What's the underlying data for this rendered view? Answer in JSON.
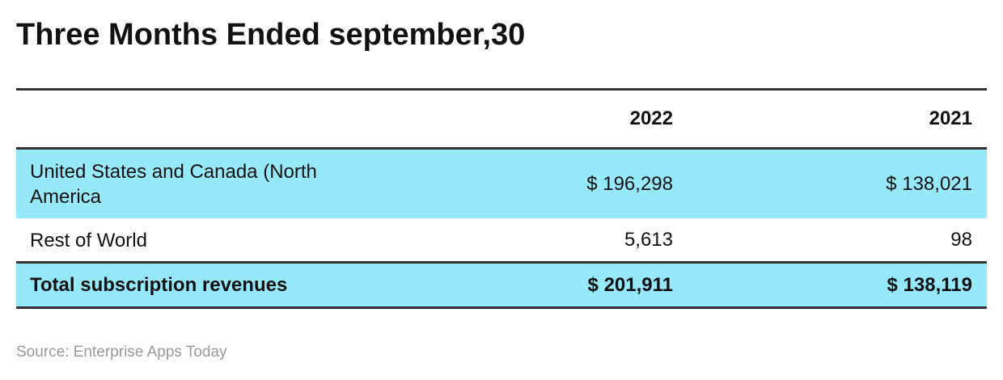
{
  "title": "Three Months Ended september,30",
  "table": {
    "columns": [
      "2022",
      "2021"
    ],
    "rows": [
      [
        "United States and Canada (North America",
        "$ 196,298",
        "$ 138,021"
      ],
      [
        "Rest of World",
        "5,613",
        "98"
      ],
      [
        "Total subscription revenues",
        "$ 201,911",
        "$ 138,119"
      ]
    ]
  },
  "source": "Source: Enterprise Apps Today"
}
